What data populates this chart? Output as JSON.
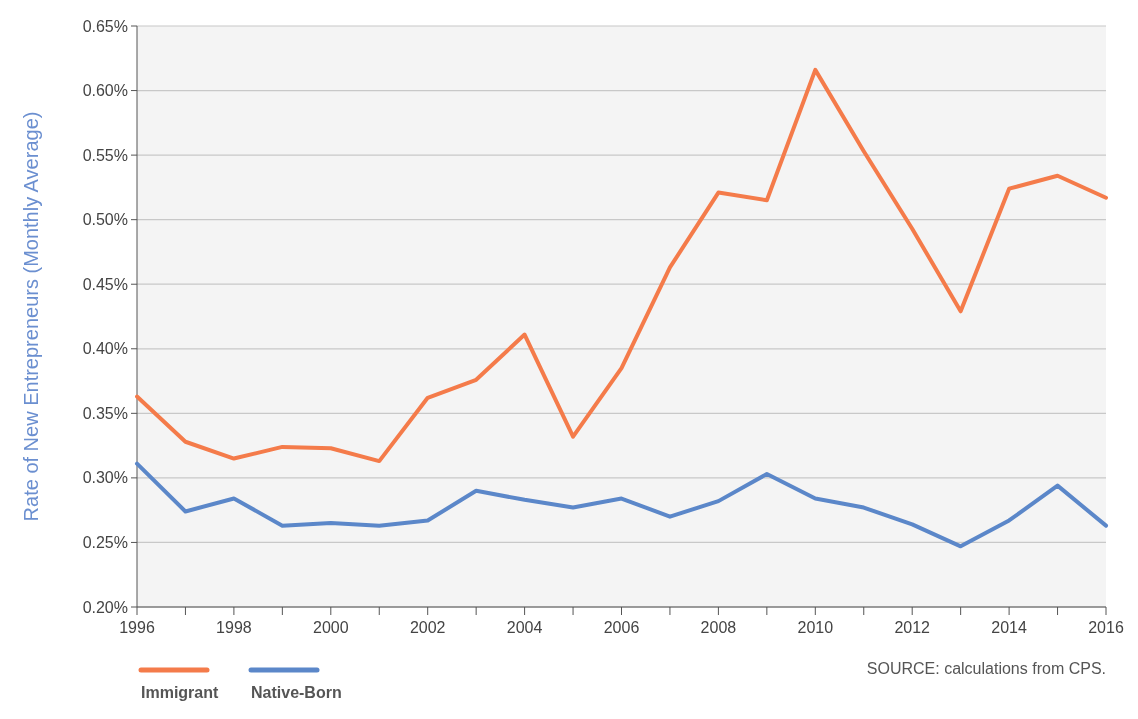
{
  "chart_data": {
    "type": "line",
    "ylabel": "Rate of New Entrepreneurs (Monthly Average)",
    "x": [
      1996,
      1997,
      1998,
      1999,
      2000,
      2001,
      2002,
      2003,
      2004,
      2005,
      2006,
      2007,
      2008,
      2009,
      2010,
      2011,
      2012,
      2013,
      2014,
      2015,
      2016
    ],
    "series": [
      {
        "name": "Immigrant",
        "color": "#f47b4a",
        "values": [
          0.363,
          0.328,
          0.315,
          0.324,
          0.323,
          0.313,
          0.362,
          0.376,
          0.411,
          0.332,
          0.385,
          0.463,
          0.521,
          0.515,
          0.616,
          0.553,
          0.493,
          0.429,
          0.524,
          0.534,
          0.517
        ]
      },
      {
        "name": "Native-Born",
        "color": "#5b87c9",
        "values": [
          0.311,
          0.274,
          0.284,
          0.263,
          0.265,
          0.263,
          0.267,
          0.29,
          0.283,
          0.277,
          0.284,
          0.27,
          0.282,
          0.303,
          0.284,
          0.277,
          0.264,
          0.247,
          0.267,
          0.294,
          0.263
        ]
      }
    ],
    "xlim": [
      1996,
      2016
    ],
    "xticks": [
      1996,
      {
        "value": 1997,
        "label": null
      },
      1998,
      {
        "value": 1999,
        "label": null
      },
      2000,
      {
        "value": 2001,
        "label": null
      },
      2002,
      {
        "value": 2003,
        "label": null
      },
      2004,
      {
        "value": 2005,
        "label": null
      },
      2006,
      {
        "value": 2007,
        "label": null
      },
      2008,
      {
        "value": 2009,
        "label": null
      },
      2010,
      {
        "value": 2011,
        "label": null
      },
      2012,
      {
        "value": 2013,
        "label": null
      },
      2014,
      {
        "value": 2015,
        "label": null
      },
      2016
    ],
    "ylim": [
      0.2,
      0.65
    ],
    "yticks": [
      {
        "value": 0.2,
        "label": "0.20%"
      },
      {
        "value": 0.25,
        "label": "0.25%"
      },
      {
        "value": 0.3,
        "label": "0.30%"
      },
      {
        "value": 0.35,
        "label": "0.35%"
      },
      {
        "value": 0.4,
        "label": "0.40%"
      },
      {
        "value": 0.45,
        "label": "0.45%"
      },
      {
        "value": 0.5,
        "label": "0.50%"
      },
      {
        "value": 0.55,
        "label": "0.55%"
      },
      {
        "value": 0.6,
        "label": "0.60%"
      },
      {
        "value": 0.65,
        "label": "0.65%"
      }
    ],
    "grid": "y",
    "legend": "bottom left",
    "marker": "none",
    "line_style": "solid",
    "annotations": [
      "SOURCE: calculations from CPS."
    ]
  }
}
